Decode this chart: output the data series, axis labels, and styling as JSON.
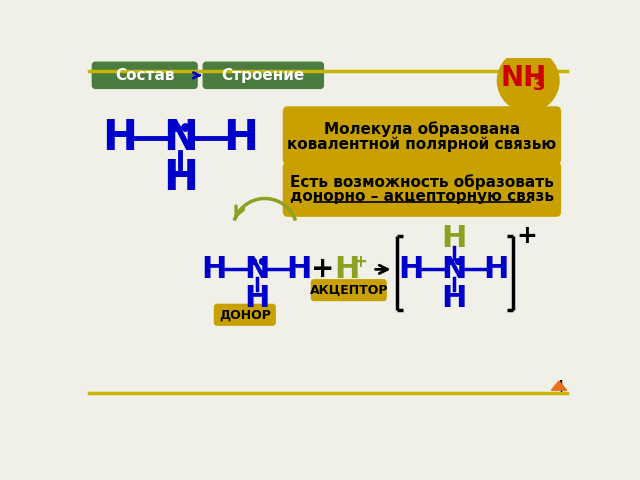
{
  "bg_color": "#f0f0e8",
  "top_line_color": "#c8b400",
  "green_box_color": "#4a7c3f",
  "green_box_text_color": "#ffffff",
  "yellow_box_color": "#c8a000",
  "nh3_circle_color": "#c8a000",
  "nh3_text_color": "#cc0000",
  "blue_color": "#0000cc",
  "olive_color": "#8da020",
  "black_color": "#000000",
  "label_sostav": "Состав",
  "label_stroenie": "Строение",
  "label_nh3": "NH",
  "label_nh3_sub": "3",
  "label_box1_line1": "Молекула образована",
  "label_box1_line2": "ковалентной полярной связью",
  "label_box2_line1": "Есть возможность образовать",
  "label_box2_line2": "донорно – акцепторную связь",
  "label_donor": "ДОНОР",
  "label_acceptor": "АКЦЕПТОР"
}
